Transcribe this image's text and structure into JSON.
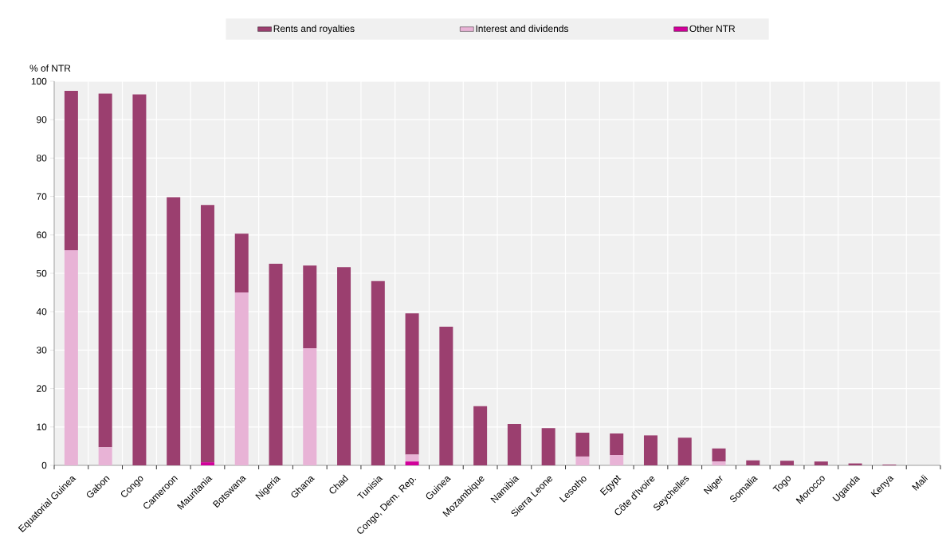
{
  "chart_data": {
    "type": "bar",
    "stacked": true,
    "ylabel": "% of NTR",
    "legend": "top",
    "grid": true,
    "ylim": [
      0,
      100
    ],
    "yticks": [
      0,
      10,
      20,
      30,
      40,
      50,
      60,
      70,
      80,
      90,
      100
    ],
    "categories": [
      "Equatorial Guinea",
      "Gabon",
      "Congo",
      "Cameroon",
      "Mauritania",
      "Botswana",
      "Nigeria",
      "Ghana",
      "Chad",
      "Tunisia",
      "Congo, Dem. Rep.",
      "Guinea",
      "Mozambique",
      "Namibia",
      "Sierra Leone",
      "Lesotho",
      "Egypt",
      "Côte d'Ivoire",
      "Seychelles",
      "Niger",
      "Somalia",
      "Togo",
      "Morocco",
      "Uganda",
      "Kenya",
      "Mali"
    ],
    "series": [
      {
        "name": "Other NTR",
        "color": "#d1009a",
        "values": [
          0,
          0,
          0,
          0,
          0.8,
          0,
          0,
          0,
          0,
          0,
          1.0,
          0,
          0,
          0,
          0,
          0,
          0,
          0,
          0,
          0,
          0,
          0,
          0,
          0,
          0,
          0
        ]
      },
      {
        "name": "Interest and dividends",
        "color": "#e8b3d6",
        "values": [
          56,
          4.7,
          0,
          0,
          0,
          45,
          0,
          30.5,
          0,
          0,
          1.8,
          0,
          0,
          0,
          0,
          2.3,
          2.7,
          0,
          0,
          1.0,
          0,
          0,
          0,
          0,
          0,
          0
        ]
      },
      {
        "name": "Rents and royalties",
        "color": "#9b3f6f",
        "values": [
          41.5,
          92.1,
          96.6,
          69.8,
          67.0,
          15.3,
          52.5,
          21.5,
          51.6,
          48.0,
          36.8,
          36.1,
          15.4,
          10.8,
          9.7,
          6.2,
          5.6,
          7.8,
          7.2,
          3.4,
          1.3,
          1.2,
          1.0,
          0.5,
          0.2,
          0
        ]
      }
    ]
  }
}
